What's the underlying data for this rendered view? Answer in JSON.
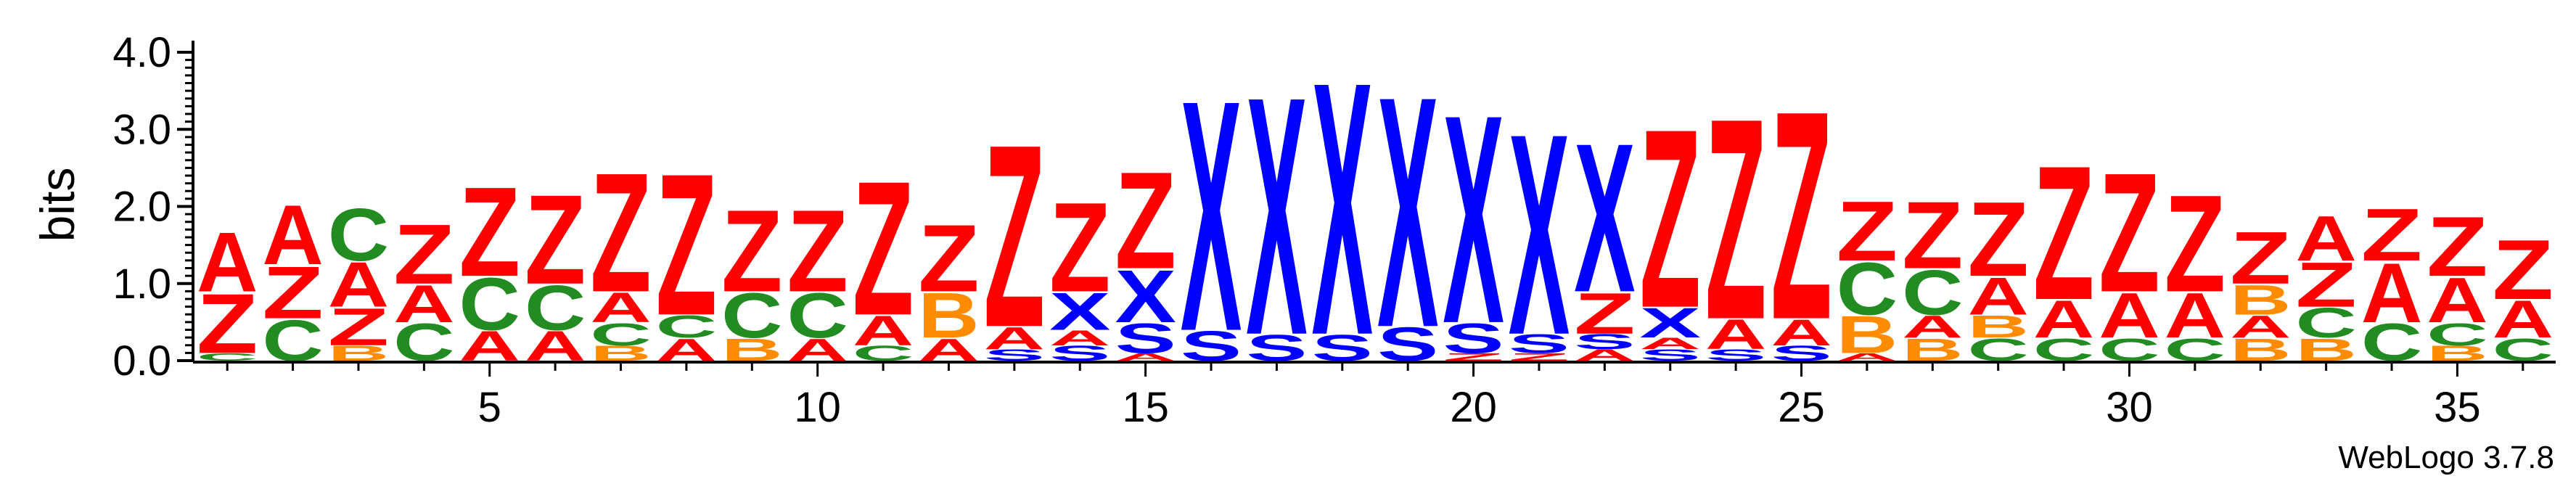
{
  "footer": "WebLogo 3.7.8",
  "colors": {
    "A": "#ff0000",
    "Z": "#ff0000",
    "C": "#228b22",
    "B": "#ff8c00",
    "X": "#0000ff",
    "S": "#0000ff"
  },
  "chart_data": {
    "type": "sequence_logo",
    "ylabel": "bits",
    "ylim": [
      0,
      4.0
    ],
    "yticks": [
      "0.0",
      "1.0",
      "2.0",
      "3.0",
      "4.0"
    ],
    "xticks": [
      5,
      10,
      15,
      20,
      25,
      30,
      35
    ],
    "positions": [
      {
        "pos": 1,
        "letters": [
          {
            "c": "C",
            "h": 0.1
          },
          {
            "c": "Z",
            "h": 0.8
          },
          {
            "c": "A",
            "h": 0.8
          }
        ]
      },
      {
        "pos": 2,
        "letters": [
          {
            "c": "C",
            "h": 0.55
          },
          {
            "c": "Z",
            "h": 0.7
          },
          {
            "c": "A",
            "h": 0.8
          }
        ]
      },
      {
        "pos": 3,
        "letters": [
          {
            "c": "B",
            "h": 0.2
          },
          {
            "c": "Z",
            "h": 0.5
          },
          {
            "c": "A",
            "h": 0.6
          },
          {
            "c": "C",
            "h": 0.7
          }
        ]
      },
      {
        "pos": 4,
        "letters": [
          {
            "c": "C",
            "h": 0.5
          },
          {
            "c": "A",
            "h": 0.5
          },
          {
            "c": "Z",
            "h": 0.8
          }
        ]
      },
      {
        "pos": 5,
        "letters": [
          {
            "c": "A",
            "h": 0.4
          },
          {
            "c": "C",
            "h": 0.7
          },
          {
            "c": "Z",
            "h": 1.2
          }
        ]
      },
      {
        "pos": 6,
        "letters": [
          {
            "c": "A",
            "h": 0.4
          },
          {
            "c": "C",
            "h": 0.6
          },
          {
            "c": "Z",
            "h": 1.2
          }
        ]
      },
      {
        "pos": 7,
        "letters": [
          {
            "c": "B",
            "h": 0.2
          },
          {
            "c": "C",
            "h": 0.3
          },
          {
            "c": "A",
            "h": 0.4
          },
          {
            "c": "Z",
            "h": 1.6
          }
        ]
      },
      {
        "pos": 8,
        "letters": [
          {
            "c": "A",
            "h": 0.3
          },
          {
            "c": "C",
            "h": 0.3
          },
          {
            "c": "Z",
            "h": 1.9
          }
        ]
      },
      {
        "pos": 9,
        "letters": [
          {
            "c": "B",
            "h": 0.3
          },
          {
            "c": "C",
            "h": 0.6
          },
          {
            "c": "Z",
            "h": 1.1
          }
        ]
      },
      {
        "pos": 10,
        "letters": [
          {
            "c": "A",
            "h": 0.3
          },
          {
            "c": "C",
            "h": 0.6
          },
          {
            "c": "Z",
            "h": 1.1
          }
        ]
      },
      {
        "pos": 11,
        "letters": [
          {
            "c": "C",
            "h": 0.2
          },
          {
            "c": "A",
            "h": 0.4
          },
          {
            "c": "Z",
            "h": 1.8
          }
        ]
      },
      {
        "pos": 12,
        "letters": [
          {
            "c": "A",
            "h": 0.3
          },
          {
            "c": "B",
            "h": 0.6
          },
          {
            "c": "Z",
            "h": 0.9
          }
        ]
      },
      {
        "pos": 13,
        "letters": [
          {
            "c": "S",
            "h": 0.15
          },
          {
            "c": "A",
            "h": 0.3
          },
          {
            "c": "Z",
            "h": 2.45
          }
        ]
      },
      {
        "pos": 14,
        "letters": [
          {
            "c": "S",
            "h": 0.2
          },
          {
            "c": "A",
            "h": 0.2
          },
          {
            "c": "X",
            "h": 0.5
          },
          {
            "c": "Z",
            "h": 1.2
          }
        ]
      },
      {
        "pos": 15,
        "letters": [
          {
            "c": "A",
            "h": 0.1
          },
          {
            "c": "S",
            "h": 0.4
          },
          {
            "c": "X",
            "h": 0.7
          },
          {
            "c": "Z",
            "h": 1.3
          }
        ]
      },
      {
        "pos": 16,
        "letters": [
          {
            "c": "S",
            "h": 0.4
          },
          {
            "c": "X",
            "h": 3.1
          }
        ]
      },
      {
        "pos": 17,
        "letters": [
          {
            "c": "S",
            "h": 0.35
          },
          {
            "c": "X",
            "h": 3.2
          }
        ]
      },
      {
        "pos": 18,
        "letters": [
          {
            "c": "S",
            "h": 0.35
          },
          {
            "c": "X",
            "h": 3.4
          }
        ]
      },
      {
        "pos": 19,
        "letters": [
          {
            "c": "S",
            "h": 0.45
          },
          {
            "c": "X",
            "h": 3.1
          }
        ]
      },
      {
        "pos": 20,
        "letters": [
          {
            "c": "Z",
            "h": 0.1
          },
          {
            "c": "S",
            "h": 0.4
          },
          {
            "c": "X",
            "h": 2.8
          }
        ]
      },
      {
        "pos": 21,
        "letters": [
          {
            "c": "Z",
            "h": 0.1
          },
          {
            "c": "S",
            "h": 0.25
          },
          {
            "c": "X",
            "h": 2.7
          }
        ]
      },
      {
        "pos": 22,
        "letters": [
          {
            "c": "A",
            "h": 0.15
          },
          {
            "c": "S",
            "h": 0.2
          },
          {
            "c": "Z",
            "h": 0.55
          },
          {
            "c": "X",
            "h": 2.0
          }
        ]
      },
      {
        "pos": 23,
        "letters": [
          {
            "c": "S",
            "h": 0.15
          },
          {
            "c": "A",
            "h": 0.15
          },
          {
            "c": "X",
            "h": 0.4
          },
          {
            "c": "Z",
            "h": 2.4
          }
        ]
      },
      {
        "pos": 24,
        "letters": [
          {
            "c": "S",
            "h": 0.15
          },
          {
            "c": "A",
            "h": 0.4
          },
          {
            "c": "Z",
            "h": 2.7
          }
        ]
      },
      {
        "pos": 25,
        "letters": [
          {
            "c": "S",
            "h": 0.2
          },
          {
            "c": "A",
            "h": 0.35
          },
          {
            "c": "Z",
            "h": 2.8
          }
        ]
      },
      {
        "pos": 26,
        "letters": [
          {
            "c": "A",
            "h": 0.1
          },
          {
            "c": "B",
            "h": 0.5
          },
          {
            "c": "C",
            "h": 0.7
          },
          {
            "c": "Z",
            "h": 0.8
          }
        ]
      },
      {
        "pos": 27,
        "letters": [
          {
            "c": "B",
            "h": 0.3
          },
          {
            "c": "A",
            "h": 0.3
          },
          {
            "c": "C",
            "h": 0.6
          },
          {
            "c": "Z",
            "h": 0.9
          }
        ]
      },
      {
        "pos": 28,
        "letters": [
          {
            "c": "C",
            "h": 0.3
          },
          {
            "c": "B",
            "h": 0.3
          },
          {
            "c": "A",
            "h": 0.5
          },
          {
            "c": "Z",
            "h": 1.0
          }
        ]
      },
      {
        "pos": 29,
        "letters": [
          {
            "c": "C",
            "h": 0.3
          },
          {
            "c": "A",
            "h": 0.5
          },
          {
            "c": "Z",
            "h": 1.8
          }
        ]
      },
      {
        "pos": 30,
        "letters": [
          {
            "c": "C",
            "h": 0.3
          },
          {
            "c": "A",
            "h": 0.6
          },
          {
            "c": "Z",
            "h": 1.6
          }
        ]
      },
      {
        "pos": 31,
        "letters": [
          {
            "c": "C",
            "h": 0.3
          },
          {
            "c": "A",
            "h": 0.6
          },
          {
            "c": "Z",
            "h": 1.3
          }
        ]
      },
      {
        "pos": 32,
        "letters": [
          {
            "c": "B",
            "h": 0.3
          },
          {
            "c": "A",
            "h": 0.3
          },
          {
            "c": "B",
            "h": 0.4
          },
          {
            "c": "Z",
            "h": 0.7
          }
        ]
      },
      {
        "pos": 33,
        "letters": [
          {
            "c": "B",
            "h": 0.3
          },
          {
            "c": "C",
            "h": 0.4
          },
          {
            "c": "Z",
            "h": 0.6
          },
          {
            "c": "A",
            "h": 0.6
          }
        ]
      },
      {
        "pos": 34,
        "letters": [
          {
            "c": "C",
            "h": 0.5
          },
          {
            "c": "A",
            "h": 0.8
          },
          {
            "c": "Z",
            "h": 0.7
          }
        ]
      },
      {
        "pos": 35,
        "letters": [
          {
            "c": "B",
            "h": 0.2
          },
          {
            "c": "C",
            "h": 0.3
          },
          {
            "c": "A",
            "h": 0.6
          },
          {
            "c": "Z",
            "h": 0.8
          }
        ]
      },
      {
        "pos": 36,
        "letters": [
          {
            "c": "C",
            "h": 0.3
          },
          {
            "c": "A",
            "h": 0.5
          },
          {
            "c": "Z",
            "h": 0.8
          }
        ]
      }
    ]
  }
}
